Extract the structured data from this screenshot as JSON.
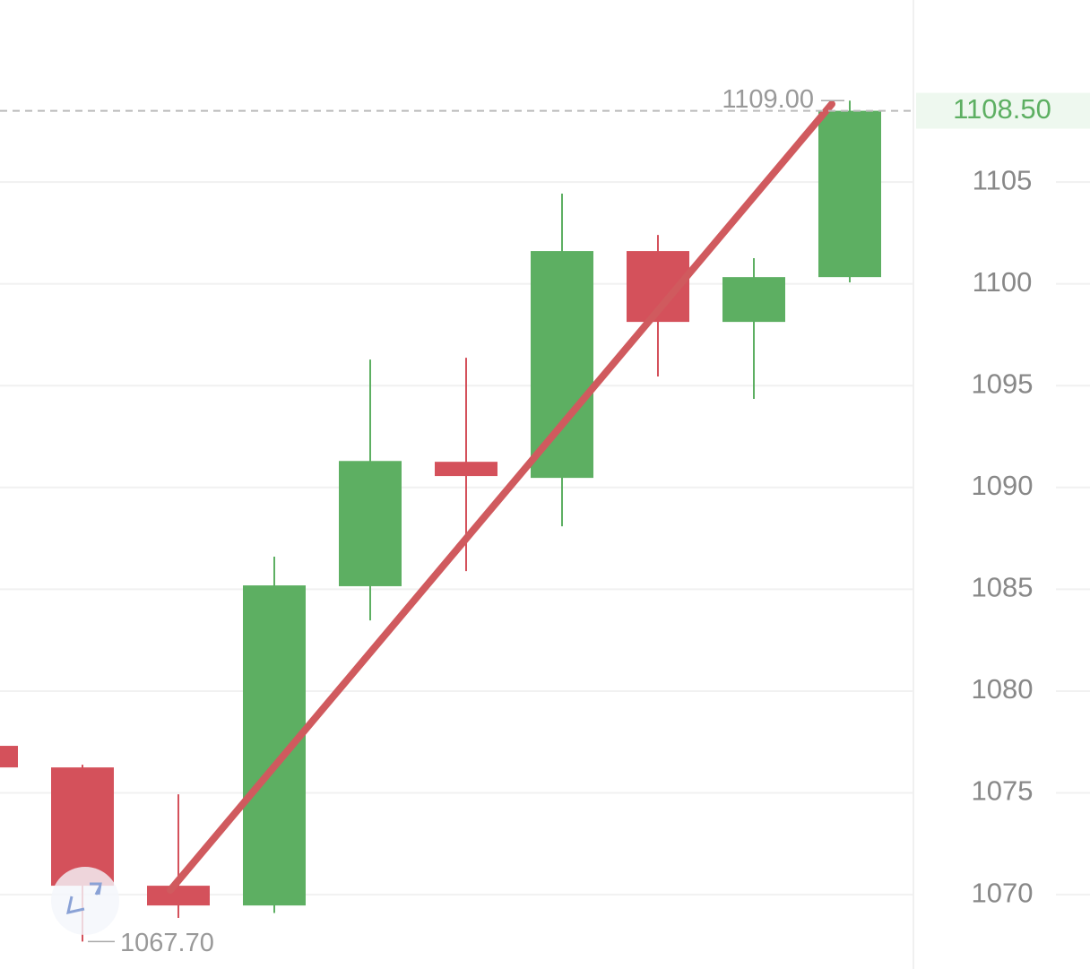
{
  "chart_data": {
    "type": "candlestick",
    "up_color": "#5daf62",
    "down_color": "#d4515b",
    "open": [
      1077.31,
      1076.25,
      1070.44,
      1069.47,
      1085.15,
      1091.26,
      1090.47,
      1101.61,
      1098.13,
      1100.33
    ],
    "high": [
      1077.31,
      1076.38,
      1074.93,
      1086.6,
      1096.28,
      1096.37,
      1104.43,
      1102.4,
      1101.26,
      1109.0
    ],
    "low": [
      1076.25,
      1067.7,
      1068.86,
      1069.1,
      1083.47,
      1085.89,
      1088.09,
      1095.45,
      1094.35,
      1100.07
    ],
    "close": [
      1076.25,
      1070.44,
      1069.47,
      1085.19,
      1091.3,
      1090.56,
      1101.61,
      1098.13,
      1100.33,
      1108.5
    ],
    "high_value_labels": [
      null,
      null,
      null,
      null,
      null,
      null,
      null,
      null,
      null,
      "1109.00"
    ],
    "low_value_labels": [
      null,
      "1067.70",
      null,
      null,
      null,
      null,
      null,
      null,
      null,
      null
    ],
    "last_price": {
      "value": 1108.5,
      "label": "1108.50"
    },
    "ylim": [
      1066.35,
      1113.94
    ],
    "yticks": [
      1070,
      1075,
      1080,
      1085,
      1090,
      1095,
      1100,
      1105
    ],
    "grid": true
  }
}
